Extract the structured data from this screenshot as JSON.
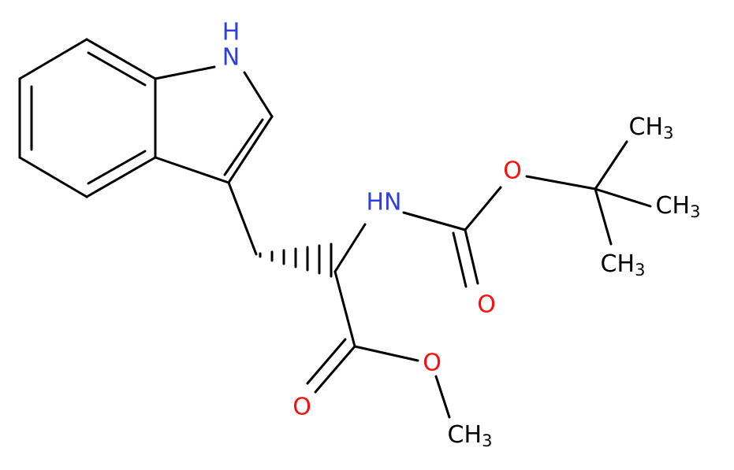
{
  "atoms": [
    {
      "label": "H"
    },
    {
      "label": "N"
    },
    {
      "label": "HN"
    },
    {
      "label": "O"
    },
    {
      "label": "O"
    },
    {
      "label": "O"
    },
    {
      "label": "O"
    },
    {
      "label": "CH",
      "sub": "3"
    },
    {
      "label": "CH",
      "sub": "3"
    },
    {
      "label": "CH",
      "sub": "3"
    },
    {
      "label": "CH",
      "sub": "3"
    }
  ]
}
